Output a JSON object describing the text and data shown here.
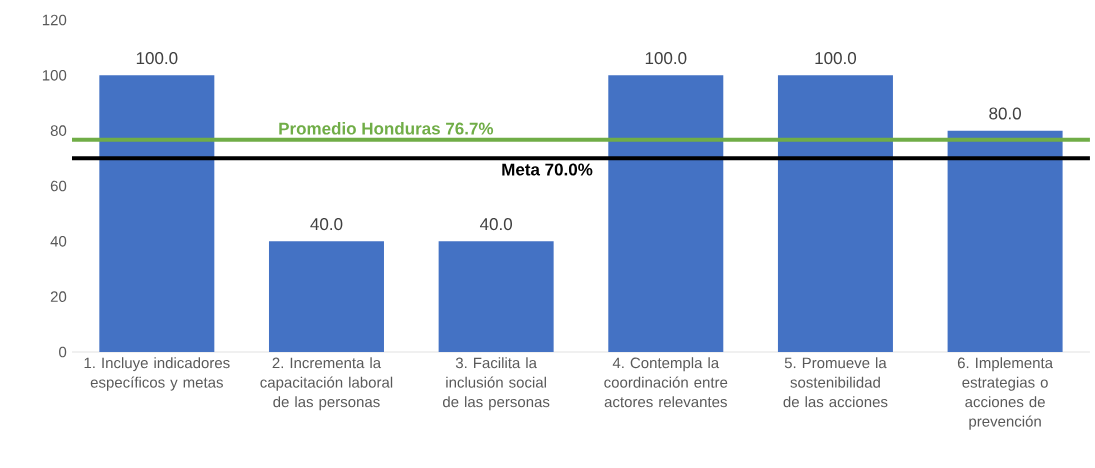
{
  "chart_data": {
    "type": "bar",
    "categories": [
      "1. Incluye indicadores específicos y metas",
      "2. Incrementa la capacitación laboral de las personas",
      "3. Facilita la inclusión social de las personas",
      "4. Contempla la coordinación entre actores relevantes",
      "5. Promueve la sostenibilidad de las acciones",
      "6. Implementa estrategias o acciones de prevención"
    ],
    "values": [
      100,
      40,
      40,
      100,
      100,
      80
    ],
    "value_labels": [
      "100.0",
      "40.0",
      "40.0",
      "100.0",
      "100.0",
      "80.0"
    ],
    "color": "#4472c4",
    "ylim": [
      0,
      120
    ],
    "yticks": [
      0,
      20,
      40,
      60,
      80,
      100,
      120
    ],
    "grid": false,
    "ref_lines": [
      {
        "axis": "y",
        "value": 76.7,
        "label": "Promedio Honduras 76.7%",
        "color": "#70ad47"
      },
      {
        "axis": "y",
        "value": 70,
        "label": "Meta 70.0%",
        "color": "#000000"
      }
    ]
  }
}
